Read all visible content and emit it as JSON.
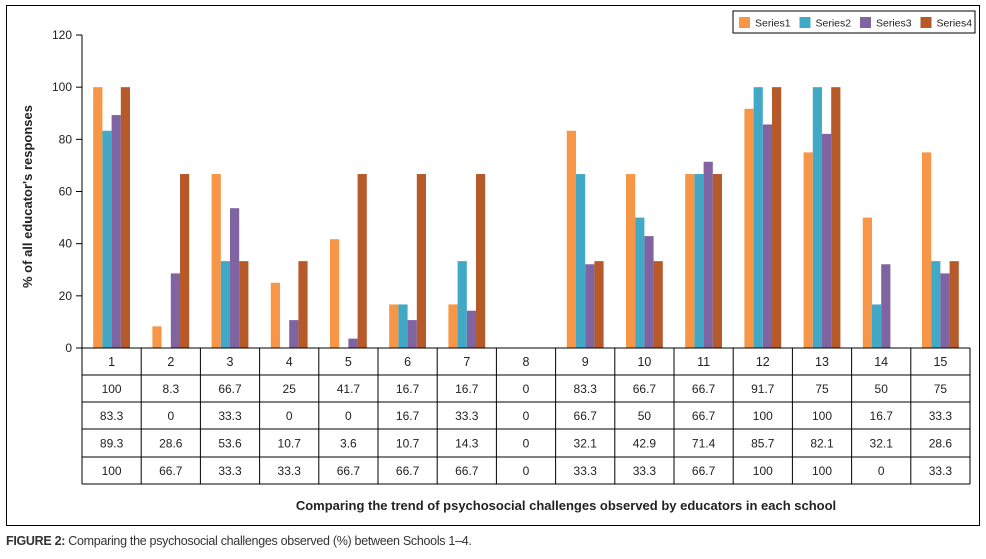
{
  "chart_data": {
    "type": "bar",
    "title": "",
    "xlabel": "Comparing the trend of psychosocial challenges observed by educators in each school",
    "ylabel": "% of all educator's responses",
    "ylim": [
      0,
      120
    ],
    "yticks": [
      0,
      20,
      40,
      60,
      80,
      100,
      120
    ],
    "grid": false,
    "legend_position": "top-right",
    "categories": [
      "1",
      "2",
      "3",
      "4",
      "5",
      "6",
      "7",
      "8",
      "9",
      "10",
      "11",
      "12",
      "13",
      "14",
      "15"
    ],
    "series": [
      {
        "name": "Series1",
        "color": "#F79646",
        "values": [
          "100",
          "8.3",
          "66.7",
          "25",
          "41.7",
          "16.7",
          "16.7",
          "0",
          "83.3",
          "66.7",
          "66.7",
          "91.7",
          "75",
          "50",
          "75"
        ]
      },
      {
        "name": "Series2",
        "color": "#41A9C6",
        "values": [
          "83.3",
          "0",
          "33.3",
          "0",
          "0",
          "16.7",
          "33.3",
          "0",
          "66.7",
          "50",
          "66.7",
          "100",
          "100",
          "16.7",
          "33.3"
        ]
      },
      {
        "name": "Series3",
        "color": "#8064A2",
        "values": [
          "89.3",
          "28.6",
          "53.6",
          "10.7",
          "3.6",
          "10.7",
          "14.3",
          "0",
          "32.1",
          "42.9",
          "71.4",
          "85.7",
          "82.1",
          "32.1",
          "28.6"
        ]
      },
      {
        "name": "Series4",
        "color": "#B65A2A",
        "values": [
          "100",
          "66.7",
          "33.3",
          "33.3",
          "66.7",
          "66.7",
          "66.7",
          "0",
          "33.3",
          "33.3",
          "66.7",
          "100",
          "100",
          "0",
          "33.3"
        ]
      }
    ],
    "data_table": true
  },
  "caption": {
    "label": "FIGURE 2:",
    "text": " Comparing the psychosocial challenges observed (%) between Schools 1–4."
  }
}
